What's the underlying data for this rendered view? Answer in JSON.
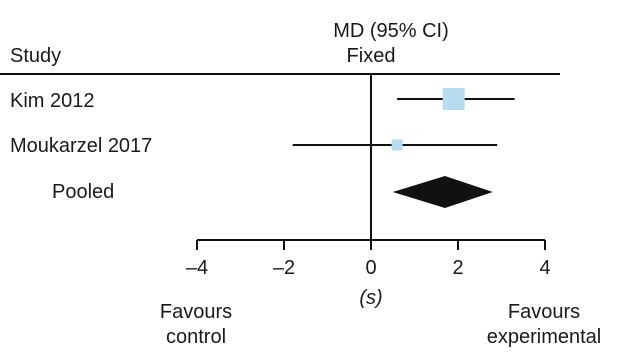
{
  "chart_data": {
    "type": "forest",
    "header": {
      "effect_label": "MD (95% CI)",
      "model_label": "Fixed",
      "study_column_label": "Study"
    },
    "studies": [
      {
        "name": "Kim 2012",
        "mean": 1.9,
        "ci_low": 0.6,
        "ci_high": 3.3,
        "weight_rank": "large"
      },
      {
        "name": "Moukarzel 2017",
        "mean": 0.6,
        "ci_low": -1.8,
        "ci_high": 2.9,
        "weight_rank": "small"
      }
    ],
    "pooled": {
      "name": "Pooled",
      "mean": 1.7,
      "ci_low": 0.5,
      "ci_high": 2.8
    },
    "x_axis": {
      "ticks": [
        "–4",
        "–2",
        "0",
        "2",
        "4"
      ],
      "tick_values": [
        -4,
        -2,
        0,
        2,
        4
      ],
      "unit_label": "(s)",
      "xlim": [
        -4,
        4
      ]
    },
    "favours": {
      "left_line1": "Favours",
      "left_line2": "control",
      "right_line1": "Favours",
      "right_line2": "experimental"
    },
    "colors": {
      "study_marker": "#b8dcef",
      "pooled_diamond": "#111111",
      "lines": "#111111"
    }
  }
}
